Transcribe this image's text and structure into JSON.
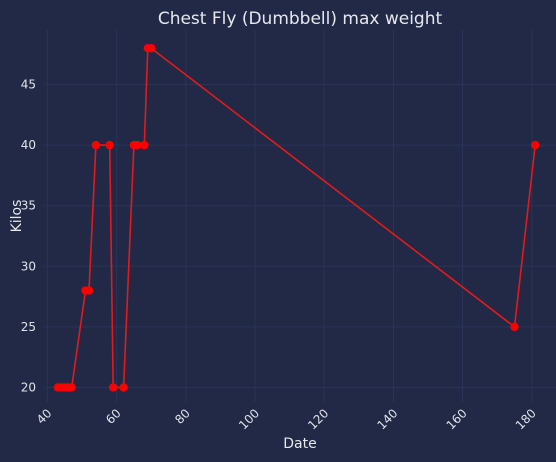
{
  "chart_data": {
    "type": "line",
    "title": "Chest Fly (Dumbbell) max weight",
    "xlabel": "Date",
    "ylabel": "Kilos",
    "xlim": [
      39,
      187
    ],
    "ylim": [
      18.8,
      49.5
    ],
    "xticks": [
      40,
      60,
      80,
      100,
      120,
      140,
      160,
      180
    ],
    "yticks": [
      20,
      25,
      30,
      35,
      40,
      45
    ],
    "grid": true,
    "colors": {
      "background": "#212946",
      "grid": "#2A3459",
      "line": "#E31A1C",
      "marker": "#FF0000",
      "text": "#E0E3EA"
    },
    "series": [
      {
        "x": [
          43,
          44,
          45,
          46,
          47,
          51,
          52,
          54,
          58,
          59,
          62,
          65,
          66,
          68,
          69,
          70,
          175,
          181
        ],
        "values": [
          20,
          20,
          20,
          20,
          20,
          28,
          28,
          40,
          40,
          20,
          20,
          40,
          40,
          40,
          48,
          48,
          25,
          40
        ]
      }
    ]
  }
}
